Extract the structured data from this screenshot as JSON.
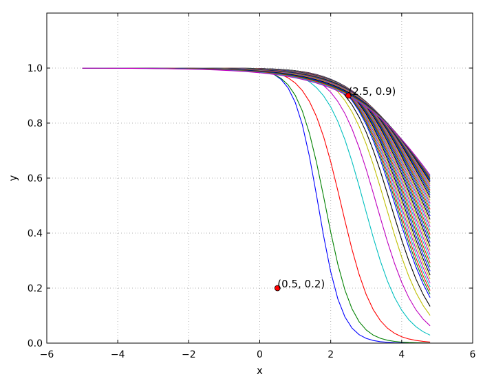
{
  "chart_data": {
    "type": "line",
    "title": "",
    "xlabel": "x",
    "ylabel": "y",
    "xlim": [
      -6,
      6
    ],
    "ylim": [
      0,
      1.2
    ],
    "xticks": [
      -6,
      -4,
      -2,
      0,
      2,
      4,
      6
    ],
    "yticks": [
      0.0,
      0.2,
      0.4,
      0.6,
      0.8,
      1.0
    ],
    "xtick_labels": [
      "−6",
      "−4",
      "−2",
      "0",
      "2",
      "4",
      "6"
    ],
    "ytick_labels": [
      "0.0",
      "0.2",
      "0.4",
      "0.6",
      "0.8",
      "1.0"
    ],
    "grid": true,
    "legend": "none",
    "curve_family": {
      "formula": "y = 1 / (1 + exp(k * (x - c)))",
      "x_start": -5,
      "x_end": 4.8,
      "x_step": 0.2,
      "color_cycle": [
        "#0000ff",
        "#008000",
        "#ff0000",
        "#00bfbf",
        "#bf00bf",
        "#bfbf00",
        "#000000"
      ],
      "steep_series": [
        {
          "k": 3.0,
          "c": 1.65
        },
        {
          "k": 2.6,
          "c": 1.85
        },
        {
          "k": 2.2,
          "c": 2.3
        },
        {
          "k": 1.9,
          "c": 2.95
        },
        {
          "k": 1.8,
          "c": 3.3
        },
        {
          "k": 1.75,
          "c": 3.55
        },
        {
          "k": 1.7,
          "c": 3.7
        }
      ],
      "bundle_series": {
        "count": 40,
        "k_from": 1.65,
        "k_to": 0.75,
        "c_from": 3.82,
        "c_to": 5.4
      }
    },
    "annotations": [
      {
        "x": 0.5,
        "y": 0.2,
        "label": "(0.5, 0.2)",
        "marker_color": "#ff0000"
      },
      {
        "x": 2.5,
        "y": 0.9,
        "label": "(2.5, 0.9)",
        "marker_color": "#ff0000"
      }
    ]
  }
}
